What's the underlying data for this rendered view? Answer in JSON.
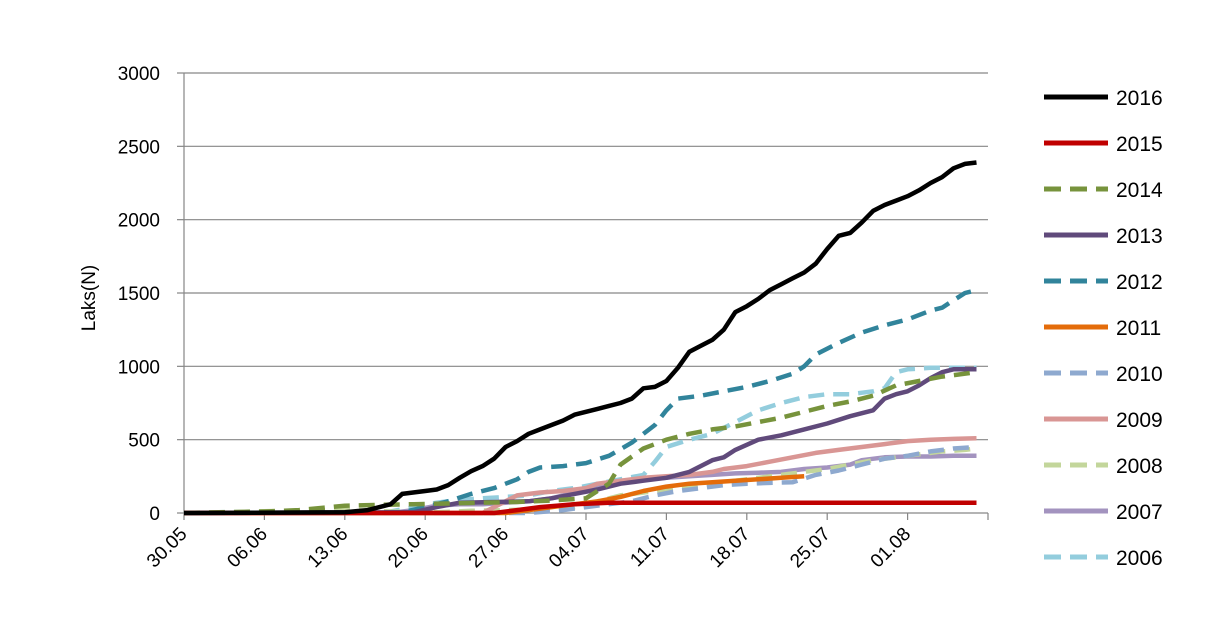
{
  "chart_data": {
    "type": "line",
    "title": "",
    "xlabel": "",
    "ylabel": "Laks(N)",
    "ylim": [
      0,
      3000
    ],
    "yticks": [
      0,
      500,
      1000,
      1500,
      2000,
      2500,
      3000
    ],
    "xlim": [
      0,
      70
    ],
    "xticks": [
      {
        "x": 0,
        "label": "30.05"
      },
      {
        "x": 7,
        "label": "06.06"
      },
      {
        "x": 14,
        "label": "13.06"
      },
      {
        "x": 21,
        "label": "20.06"
      },
      {
        "x": 28,
        "label": "27.06"
      },
      {
        "x": 35,
        "label": "04.07"
      },
      {
        "x": 42,
        "label": "11.07"
      },
      {
        "x": 49,
        "label": "18.07"
      },
      {
        "x": 56,
        "label": "25.07"
      },
      {
        "x": 63,
        "label": "01.08"
      }
    ],
    "grid": true,
    "legend_position": "right",
    "series": [
      {
        "name": "2016",
        "color": "#000000",
        "dash": "solid",
        "points": [
          [
            0,
            0
          ],
          [
            14,
            5
          ],
          [
            16,
            20
          ],
          [
            18,
            60
          ],
          [
            19,
            130
          ],
          [
            21,
            150
          ],
          [
            22,
            160
          ],
          [
            23,
            190
          ],
          [
            24,
            240
          ],
          [
            25,
            285
          ],
          [
            26,
            320
          ],
          [
            27,
            370
          ],
          [
            28,
            450
          ],
          [
            29,
            490
          ],
          [
            30,
            540
          ],
          [
            31,
            570
          ],
          [
            32,
            600
          ],
          [
            33,
            630
          ],
          [
            34,
            670
          ],
          [
            35,
            690
          ],
          [
            36,
            710
          ],
          [
            37,
            730
          ],
          [
            38,
            750
          ],
          [
            39,
            780
          ],
          [
            40,
            850
          ],
          [
            41,
            860
          ],
          [
            42,
            900
          ],
          [
            43,
            990
          ],
          [
            44,
            1100
          ],
          [
            45,
            1140
          ],
          [
            46,
            1180
          ],
          [
            47,
            1250
          ],
          [
            48,
            1370
          ],
          [
            49,
            1410
          ],
          [
            50,
            1460
          ],
          [
            51,
            1520
          ],
          [
            52,
            1560
          ],
          [
            53,
            1600
          ],
          [
            54,
            1640
          ],
          [
            55,
            1700
          ],
          [
            56,
            1800
          ],
          [
            57,
            1890
          ],
          [
            58,
            1910
          ],
          [
            59,
            1980
          ],
          [
            60,
            2060
          ],
          [
            61,
            2100
          ],
          [
            62,
            2130
          ],
          [
            63,
            2160
          ],
          [
            64,
            2200
          ],
          [
            65,
            2250
          ],
          [
            66,
            2290
          ],
          [
            67,
            2350
          ],
          [
            68,
            2380
          ],
          [
            69,
            2390
          ]
        ]
      },
      {
        "name": "2015",
        "color": "#c00000",
        "dash": "solid",
        "points": [
          [
            0,
            0
          ],
          [
            27,
            0
          ],
          [
            29,
            20
          ],
          [
            31,
            40
          ],
          [
            34,
            60
          ],
          [
            37,
            70
          ],
          [
            69,
            70
          ]
        ]
      },
      {
        "name": "2014",
        "color": "#77933c",
        "dash": "dashed",
        "points": [
          [
            0,
            0
          ],
          [
            7,
            10
          ],
          [
            10,
            20
          ],
          [
            14,
            50
          ],
          [
            17,
            55
          ],
          [
            20,
            60
          ],
          [
            23,
            65
          ],
          [
            26,
            70
          ],
          [
            29,
            75
          ],
          [
            32,
            85
          ],
          [
            35,
            100
          ],
          [
            37,
            200
          ],
          [
            38,
            330
          ],
          [
            40,
            440
          ],
          [
            42,
            500
          ],
          [
            44,
            540
          ],
          [
            46,
            570
          ],
          [
            48,
            590
          ],
          [
            50,
            620
          ],
          [
            52,
            650
          ],
          [
            54,
            690
          ],
          [
            56,
            730
          ],
          [
            58,
            760
          ],
          [
            60,
            800
          ],
          [
            62,
            870
          ],
          [
            64,
            900
          ],
          [
            66,
            930
          ],
          [
            69,
            960
          ]
        ]
      },
      {
        "name": "2013",
        "color": "#604a7b",
        "dash": "solid",
        "points": [
          [
            0,
            0
          ],
          [
            20,
            5
          ],
          [
            22,
            40
          ],
          [
            24,
            70
          ],
          [
            27,
            75
          ],
          [
            30,
            80
          ],
          [
            32,
            100
          ],
          [
            34,
            130
          ],
          [
            36,
            160
          ],
          [
            38,
            200
          ],
          [
            40,
            220
          ],
          [
            42,
            240
          ],
          [
            44,
            280
          ],
          [
            46,
            360
          ],
          [
            47,
            380
          ],
          [
            48,
            430
          ],
          [
            50,
            500
          ],
          [
            52,
            530
          ],
          [
            54,
            570
          ],
          [
            56,
            610
          ],
          [
            58,
            660
          ],
          [
            60,
            700
          ],
          [
            61,
            780
          ],
          [
            62,
            810
          ],
          [
            63,
            830
          ],
          [
            64,
            870
          ],
          [
            65,
            920
          ],
          [
            66,
            960
          ],
          [
            67,
            980
          ],
          [
            69,
            980
          ]
        ]
      },
      {
        "name": "2012",
        "color": "#31849b",
        "dash": "dashed",
        "points": [
          [
            0,
            0
          ],
          [
            19,
            5
          ],
          [
            21,
            40
          ],
          [
            23,
            80
          ],
          [
            25,
            130
          ],
          [
            27,
            170
          ],
          [
            29,
            230
          ],
          [
            30,
            280
          ],
          [
            31,
            310
          ],
          [
            33,
            320
          ],
          [
            35,
            340
          ],
          [
            37,
            390
          ],
          [
            39,
            480
          ],
          [
            41,
            600
          ],
          [
            42,
            700
          ],
          [
            43,
            780
          ],
          [
            45,
            800
          ],
          [
            47,
            830
          ],
          [
            49,
            860
          ],
          [
            51,
            900
          ],
          [
            53,
            950
          ],
          [
            54,
            1000
          ],
          [
            55,
            1080
          ],
          [
            57,
            1160
          ],
          [
            59,
            1230
          ],
          [
            61,
            1280
          ],
          [
            63,
            1320
          ],
          [
            65,
            1380
          ],
          [
            66,
            1400
          ],
          [
            67,
            1450
          ],
          [
            68,
            1500
          ],
          [
            69,
            1520
          ]
        ]
      },
      {
        "name": "2011",
        "color": "#e46c0a",
        "dash": "solid",
        "points": [
          [
            0,
            0
          ],
          [
            28,
            0
          ],
          [
            30,
            20
          ],
          [
            32,
            40
          ],
          [
            34,
            60
          ],
          [
            36,
            80
          ],
          [
            38,
            110
          ],
          [
            40,
            150
          ],
          [
            42,
            180
          ],
          [
            44,
            200
          ],
          [
            46,
            210
          ],
          [
            48,
            220
          ],
          [
            50,
            230
          ],
          [
            52,
            240
          ],
          [
            54,
            250
          ]
        ]
      },
      {
        "name": "2010",
        "color": "#8ea9cf",
        "dash": "dashed",
        "points": [
          [
            0,
            0
          ],
          [
            30,
            0
          ],
          [
            33,
            20
          ],
          [
            35,
            40
          ],
          [
            37,
            60
          ],
          [
            39,
            80
          ],
          [
            41,
            120
          ],
          [
            43,
            150
          ],
          [
            45,
            170
          ],
          [
            47,
            190
          ],
          [
            49,
            200
          ],
          [
            51,
            205
          ],
          [
            53,
            210
          ],
          [
            55,
            260
          ],
          [
            57,
            290
          ],
          [
            59,
            330
          ],
          [
            61,
            370
          ],
          [
            63,
            390
          ],
          [
            65,
            420
          ],
          [
            67,
            440
          ],
          [
            69,
            450
          ]
        ]
      },
      {
        "name": "2009",
        "color": "#d99694",
        "dash": "solid",
        "points": [
          [
            0,
            0
          ],
          [
            26,
            0
          ],
          [
            28,
            80
          ],
          [
            29,
            120
          ],
          [
            31,
            140
          ],
          [
            33,
            150
          ],
          [
            35,
            170
          ],
          [
            36,
            200
          ],
          [
            38,
            220
          ],
          [
            40,
            240
          ],
          [
            42,
            250
          ],
          [
            44,
            260
          ],
          [
            46,
            280
          ],
          [
            47,
            300
          ],
          [
            49,
            320
          ],
          [
            51,
            350
          ],
          [
            53,
            380
          ],
          [
            55,
            410
          ],
          [
            57,
            430
          ],
          [
            59,
            450
          ],
          [
            61,
            470
          ],
          [
            63,
            490
          ],
          [
            65,
            500
          ],
          [
            67,
            505
          ],
          [
            69,
            510
          ]
        ]
      },
      {
        "name": "2008",
        "color": "#c3d69b",
        "dash": "dashed",
        "points": [
          [
            0,
            0
          ],
          [
            3,
            5
          ],
          [
            6,
            10
          ],
          [
            9,
            15
          ],
          [
            12,
            20
          ],
          [
            15,
            20
          ],
          [
            18,
            10
          ],
          [
            22,
            5
          ],
          [
            25,
            15
          ],
          [
            28,
            20
          ],
          [
            31,
            25
          ],
          [
            34,
            40
          ],
          [
            36,
            80
          ],
          [
            38,
            120
          ],
          [
            40,
            140
          ],
          [
            42,
            160
          ],
          [
            44,
            180
          ],
          [
            46,
            200
          ],
          [
            48,
            220
          ],
          [
            50,
            240
          ],
          [
            52,
            260
          ],
          [
            54,
            280
          ],
          [
            56,
            300
          ],
          [
            58,
            330
          ],
          [
            60,
            360
          ],
          [
            62,
            380
          ],
          [
            64,
            400
          ],
          [
            66,
            420
          ],
          [
            68,
            430
          ],
          [
            69,
            440
          ]
        ]
      },
      {
        "name": "2007",
        "color": "#a393bf",
        "dash": "solid",
        "points": [
          [
            0,
            0
          ],
          [
            18,
            0
          ],
          [
            20,
            20
          ],
          [
            22,
            50
          ],
          [
            24,
            60
          ],
          [
            26,
            60
          ],
          [
            28,
            70
          ],
          [
            30,
            80
          ],
          [
            32,
            100
          ],
          [
            34,
            140
          ],
          [
            36,
            180
          ],
          [
            38,
            210
          ],
          [
            40,
            230
          ],
          [
            42,
            240
          ],
          [
            44,
            250
          ],
          [
            46,
            260
          ],
          [
            48,
            270
          ],
          [
            50,
            275
          ],
          [
            52,
            280
          ],
          [
            54,
            300
          ],
          [
            56,
            310
          ],
          [
            58,
            330
          ],
          [
            59,
            360
          ],
          [
            61,
            380
          ],
          [
            63,
            385
          ],
          [
            65,
            385
          ],
          [
            67,
            390
          ],
          [
            69,
            390
          ]
        ]
      },
      {
        "name": "2006",
        "color": "#93cddd",
        "dash": "dashed",
        "points": [
          [
            0,
            0
          ],
          [
            3,
            5
          ],
          [
            6,
            10
          ],
          [
            9,
            10
          ],
          [
            12,
            5
          ],
          [
            15,
            5
          ],
          [
            18,
            10
          ],
          [
            20,
            40
          ],
          [
            22,
            70
          ],
          [
            24,
            90
          ],
          [
            26,
            100
          ],
          [
            28,
            110
          ],
          [
            30,
            120
          ],
          [
            32,
            150
          ],
          [
            34,
            170
          ],
          [
            36,
            200
          ],
          [
            38,
            230
          ],
          [
            40,
            260
          ],
          [
            41,
            350
          ],
          [
            42,
            450
          ],
          [
            44,
            500
          ],
          [
            46,
            540
          ],
          [
            48,
            620
          ],
          [
            50,
            700
          ],
          [
            52,
            750
          ],
          [
            54,
            790
          ],
          [
            56,
            810
          ],
          [
            58,
            810
          ],
          [
            60,
            830
          ],
          [
            61,
            850
          ],
          [
            62,
            960
          ],
          [
            63,
            980
          ],
          [
            65,
            990
          ],
          [
            67,
            990
          ],
          [
            69,
            990
          ]
        ]
      }
    ]
  }
}
